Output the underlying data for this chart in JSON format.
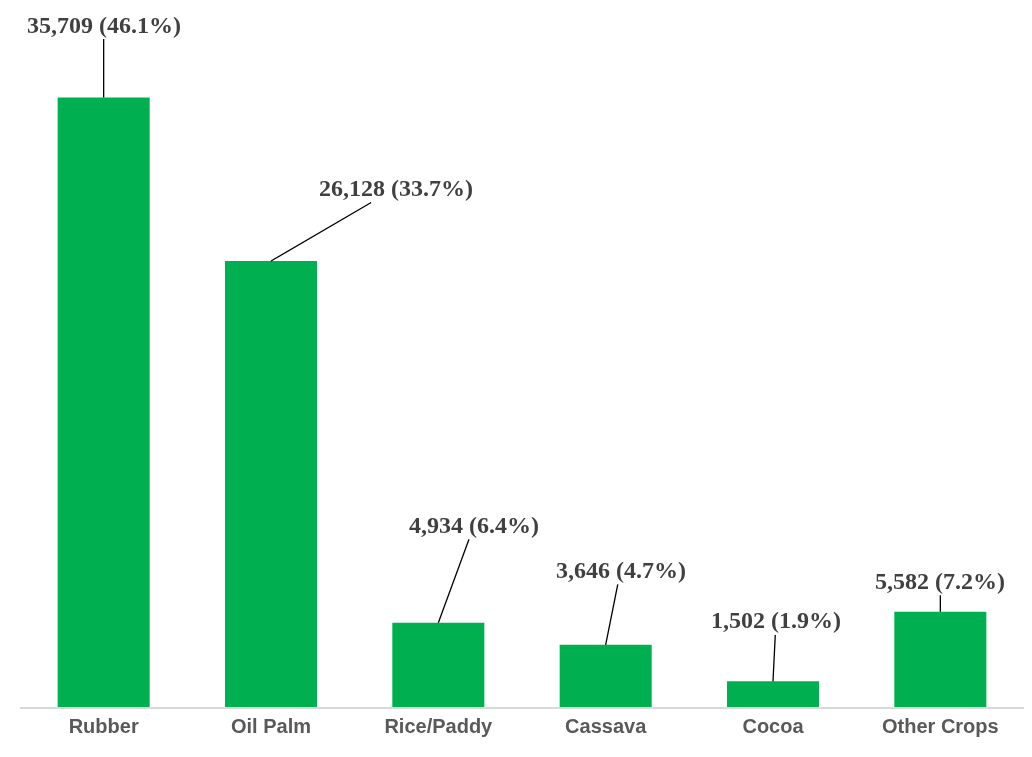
{
  "chart_data": {
    "type": "bar",
    "categories": [
      "Rubber",
      "Oil Palm",
      "Rice/Paddy",
      "Cassava",
      "Cocoa",
      "Other Crops"
    ],
    "values": [
      35709,
      26128,
      4934,
      3646,
      1502,
      5582
    ],
    "value_labels": [
      "35,709 (46.1%)",
      "26,128 (33.7%)",
      "4,934 (6.4%)",
      "3,646 (4.7%)",
      "1,502 (1.9%)",
      "5,582 (7.2%)"
    ],
    "color": "#00b050",
    "tick_labels": "x"
  }
}
